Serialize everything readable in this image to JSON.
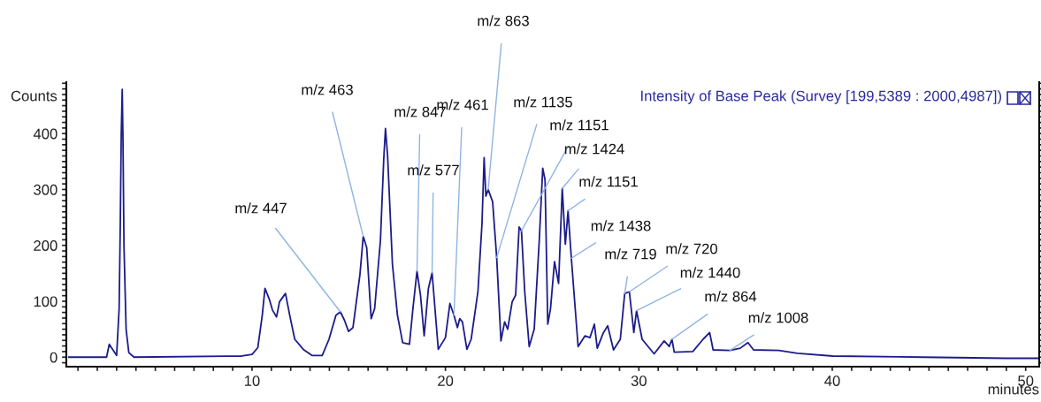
{
  "chart_data": {
    "type": "line",
    "title": "Intensity of Base Peak (Survey [199,5389 : 2000,4987])",
    "ylabel": "Counts",
    "xlabel": "minutes",
    "x": [
      0.53,
      2.48,
      2.62,
      3.0,
      3.13,
      3.19,
      3.24,
      3.29,
      3.33,
      3.38,
      3.49,
      3.63,
      3.9,
      9.47,
      10.0,
      10.3,
      10.53,
      10.67,
      10.88,
      11.06,
      11.27,
      11.42,
      11.73,
      11.95,
      12.21,
      12.65,
      13.1,
      13.63,
      13.98,
      14.34,
      14.57,
      14.78,
      14.99,
      15.22,
      15.58,
      15.75,
      15.93,
      16.16,
      16.34,
      16.64,
      16.81,
      16.9,
      17.01,
      17.26,
      17.52,
      17.79,
      18.14,
      18.32,
      18.53,
      18.71,
      18.9,
      19.12,
      19.31,
      19.63,
      20.0,
      20.23,
      20.44,
      20.62,
      20.74,
      20.88,
      21.11,
      21.33,
      21.68,
      21.89,
      22.0,
      22.09,
      22.21,
      22.44,
      22.65,
      22.87,
      23.06,
      23.22,
      23.45,
      23.63,
      23.81,
      23.93,
      24.1,
      24.33,
      24.59,
      24.85,
      25.03,
      25.15,
      25.29,
      25.43,
      25.64,
      25.85,
      26.04,
      26.2,
      26.34,
      26.51,
      26.86,
      27.21,
      27.47,
      27.7,
      27.85,
      28.17,
      28.39,
      28.69,
      29.04,
      29.27,
      29.51,
      29.74,
      29.88,
      30.17,
      30.79,
      31.31,
      31.57,
      31.71,
      31.83,
      32.79,
      33.32,
      33.66,
      33.84,
      34.71,
      35.24,
      35.64,
      35.93,
      37.24,
      38.2,
      40.03,
      44.66,
      49.02,
      50.7
    ],
    "series": [
      {
        "color": "#1c1c8a",
        "values": [
          0,
          0,
          23,
          3,
          87,
          239,
          400,
          479,
          385,
          199,
          50,
          8,
          0,
          2,
          5,
          17,
          75,
          123,
          105,
          84,
          72,
          99,
          114,
          75,
          32,
          14,
          3,
          3,
          32,
          75,
          81,
          66,
          46,
          53,
          148,
          216,
          196,
          69,
          87,
          209,
          354,
          409,
          360,
          166,
          75,
          26,
          23,
          87,
          154,
          111,
          38,
          123,
          151,
          14,
          35,
          96,
          75,
          53,
          69,
          63,
          14,
          32,
          117,
          239,
          357,
          288,
          300,
          278,
          178,
          29,
          63,
          50,
          99,
          111,
          233,
          226,
          117,
          19,
          50,
          208,
          338,
          317,
          59,
          86,
          171,
          132,
          302,
          202,
          262,
          177,
          19,
          38,
          35,
          59,
          16,
          44,
          56,
          13,
          32,
          114,
          117,
          44,
          83,
          32,
          6,
          29,
          19,
          32,
          9,
          10,
          32,
          44,
          13,
          12,
          16,
          26,
          13,
          12,
          7,
          2,
          0,
          -2,
          -2
        ]
      }
    ],
    "xlim": [
      0.4,
      50.7
    ],
    "ylim": [
      -17,
      492
    ],
    "xticks": [
      {
        "value": 1,
        "label": null
      },
      {
        "value": 2,
        "label": null
      },
      {
        "value": 3,
        "label": null
      },
      {
        "value": 4,
        "label": null
      },
      {
        "value": 5,
        "label": null
      },
      {
        "value": 6,
        "label": null
      },
      {
        "value": 7,
        "label": null
      },
      {
        "value": 8,
        "label": null
      },
      {
        "value": 9,
        "label": null
      },
      10,
      {
        "value": 11,
        "label": null
      },
      {
        "value": 12,
        "label": null
      },
      {
        "value": 13,
        "label": null
      },
      {
        "value": 14,
        "label": null
      },
      {
        "value": 15,
        "label": null
      },
      {
        "value": 16,
        "label": null
      },
      {
        "value": 17,
        "label": null
      },
      {
        "value": 18,
        "label": null
      },
      {
        "value": 19,
        "label": null
      },
      20,
      {
        "value": 21,
        "label": null
      },
      {
        "value": 22,
        "label": null
      },
      {
        "value": 23,
        "label": null
      },
      {
        "value": 24,
        "label": null
      },
      {
        "value": 25,
        "label": null
      },
      {
        "value": 26,
        "label": null
      },
      {
        "value": 27,
        "label": null
      },
      {
        "value": 28,
        "label": null
      },
      {
        "value": 29,
        "label": null
      },
      30,
      {
        "value": 31,
        "label": null
      },
      {
        "value": 32,
        "label": null
      },
      {
        "value": 33,
        "label": null
      },
      {
        "value": 34,
        "label": null
      },
      {
        "value": 35,
        "label": null
      },
      {
        "value": 36,
        "label": null
      },
      {
        "value": 37,
        "label": null
      },
      {
        "value": 38,
        "label": null
      },
      {
        "value": 39,
        "label": null
      },
      40,
      {
        "value": 41,
        "label": null
      },
      {
        "value": 42,
        "label": null
      },
      {
        "value": 43,
        "label": null
      },
      {
        "value": 44,
        "label": null
      },
      {
        "value": 45,
        "label": null
      },
      {
        "value": 46,
        "label": null
      },
      {
        "value": 47,
        "label": null
      },
      {
        "value": 48,
        "label": null
      },
      {
        "value": 49,
        "label": null
      },
      50
    ],
    "yticks": [
      {
        "value": -10,
        "label": null
      },
      0,
      {
        "value": 10,
        "label": null
      },
      {
        "value": 20,
        "label": null
      },
      {
        "value": 30,
        "label": null
      },
      {
        "value": 40,
        "label": null
      },
      {
        "value": 50,
        "label": null
      },
      {
        "value": 60,
        "label": null
      },
      {
        "value": 70,
        "label": null
      },
      {
        "value": 80,
        "label": null
      },
      {
        "value": 90,
        "label": null
      },
      100,
      {
        "value": 110,
        "label": null
      },
      {
        "value": 120,
        "label": null
      },
      {
        "value": 130,
        "label": null
      },
      {
        "value": 140,
        "label": null
      },
      {
        "value": 150,
        "label": null
      },
      {
        "value": 160,
        "label": null
      },
      {
        "value": 170,
        "label": null
      },
      {
        "value": 180,
        "label": null
      },
      {
        "value": 190,
        "label": null
      },
      200,
      {
        "value": 210,
        "label": null
      },
      {
        "value": 220,
        "label": null
      },
      {
        "value": 230,
        "label": null
      },
      {
        "value": 240,
        "label": null
      },
      {
        "value": 250,
        "label": null
      },
      {
        "value": 260,
        "label": null
      },
      {
        "value": 270,
        "label": null
      },
      {
        "value": 280,
        "label": null
      },
      {
        "value": 290,
        "label": null
      },
      300,
      {
        "value": 310,
        "label": null
      },
      {
        "value": 320,
        "label": null
      },
      {
        "value": 330,
        "label": null
      },
      {
        "value": 340,
        "label": null
      },
      {
        "value": 350,
        "label": null
      },
      {
        "value": 360,
        "label": null
      },
      {
        "value": 370,
        "label": null
      },
      {
        "value": 380,
        "label": null
      },
      {
        "value": 390,
        "label": null
      },
      400,
      {
        "value": 410,
        "label": null
      },
      {
        "value": 420,
        "label": null
      },
      {
        "value": 430,
        "label": null
      },
      {
        "value": 440,
        "label": null
      },
      {
        "value": 450,
        "label": null
      },
      {
        "value": 460,
        "label": null
      },
      {
        "value": 470,
        "label": null
      },
      {
        "value": 480,
        "label": null
      },
      {
        "value": 490,
        "label": null
      }
    ],
    "grid": false,
    "marker": "none",
    "line_style": "solid",
    "annotations": [
      {
        "text": "m/z 447",
        "x": 14.57,
        "y": 81
      },
      {
        "text": "m/z 463",
        "x": 15.75,
        "y": 216
      },
      {
        "text": "m/z 847",
        "x": 18.53,
        "y": 154
      },
      {
        "text": "m/z 577",
        "x": 19.31,
        "y": 151
      },
      {
        "text": "m/z 461",
        "x": 20.44,
        "y": 75
      },
      {
        "text": "m/z 863",
        "x": 22.21,
        "y": 300
      },
      {
        "text": "m/z 1135",
        "x": 22.65,
        "y": 178
      },
      {
        "text": "m/z 1151",
        "x": 23.93,
        "y": 226
      },
      {
        "text": "m/z 1424",
        "x": 26.04,
        "y": 302
      },
      {
        "text": "m/z 1151",
        "x": 26.34,
        "y": 262
      },
      {
        "text": "m/z 1438",
        "x": 26.51,
        "y": 177
      },
      {
        "text": "m/z 719",
        "x": 29.27,
        "y": 114
      },
      {
        "text": "m/z 720",
        "x": 29.51,
        "y": 117
      },
      {
        "text": "m/z 1440",
        "x": 29.88,
        "y": 83
      },
      {
        "text": "m/z 864",
        "x": 31.71,
        "y": 32
      },
      {
        "text": "m/z 1008",
        "x": 34.71,
        "y": 12
      }
    ]
  }
}
